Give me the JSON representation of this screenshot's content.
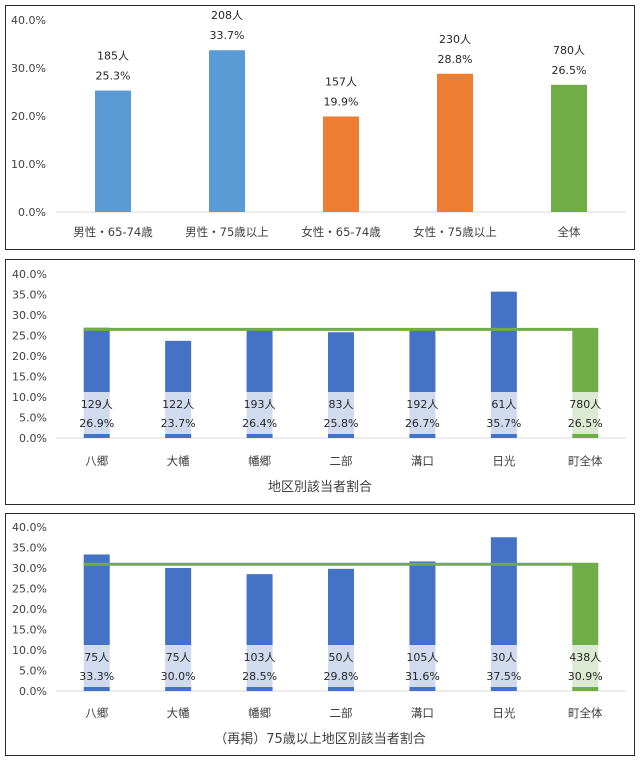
{
  "chart_data": [
    {
      "type": "bar",
      "title": "",
      "ylim": [
        0,
        40
      ],
      "yticks": [
        "0.0%",
        "10.0%",
        "20.0%",
        "30.0%",
        "40.0%"
      ],
      "gridlines": false,
      "categories": [
        "男性・65-74歳",
        "男性・75歳以上",
        "女性・65-74歳",
        "女性・75歳以上",
        "全体"
      ],
      "values": [
        25.3,
        33.7,
        19.9,
        28.8,
        26.5
      ],
      "counts": [
        "185人",
        "208人",
        "157人",
        "230人",
        "780人"
      ],
      "pct_labels": [
        "25.3%",
        "33.7%",
        "19.9%",
        "28.8%",
        "26.5%"
      ],
      "colors": [
        "#5b9bd5",
        "#5b9bd5",
        "#ed7d31",
        "#ed7d31",
        "#70ad47"
      ]
    },
    {
      "type": "bar",
      "title": "地区別該当者割合",
      "ylim": [
        0,
        40
      ],
      "yticks": [
        "0.0%",
        "5.0%",
        "10.0%",
        "15.0%",
        "20.0%",
        "25.0%",
        "30.0%",
        "35.0%",
        "40.0%"
      ],
      "categories": [
        "八郷",
        "大幡",
        "幡郷",
        "二部",
        "溝口",
        "日光",
        "町全体"
      ],
      "values": [
        26.9,
        23.7,
        26.4,
        25.8,
        26.7,
        35.7,
        26.5
      ],
      "counts": [
        "129人",
        "122人",
        "193人",
        "83人",
        "192人",
        "61人",
        "780人"
      ],
      "pct_labels": [
        "26.9%",
        "23.7%",
        "26.4%",
        "25.8%",
        "26.7%",
        "35.7%",
        "26.5%"
      ],
      "colors": [
        "#4472c4",
        "#4472c4",
        "#4472c4",
        "#4472c4",
        "#4472c4",
        "#4472c4",
        "#70ad47"
      ],
      "reference_line": 26.5,
      "reference_color": "#70ad47"
    },
    {
      "type": "bar",
      "title": "（再掲）75歳以上地区別該当者割合",
      "ylim": [
        0,
        40
      ],
      "yticks": [
        "0.0%",
        "5.0%",
        "10.0%",
        "15.0%",
        "20.0%",
        "25.0%",
        "30.0%",
        "35.0%",
        "40.0%"
      ],
      "categories": [
        "八郷",
        "大幡",
        "幡郷",
        "二部",
        "溝口",
        "日光",
        "町全体"
      ],
      "values": [
        33.3,
        30.0,
        28.5,
        29.8,
        31.6,
        37.5,
        30.9
      ],
      "counts": [
        "75人",
        "75人",
        "103人",
        "50人",
        "105人",
        "30人",
        "438人"
      ],
      "pct_labels": [
        "33.3%",
        "30.0%",
        "28.5%",
        "29.8%",
        "31.6%",
        "37.5%",
        "30.9%"
      ],
      "colors": [
        "#4472c4",
        "#4472c4",
        "#4472c4",
        "#4472c4",
        "#4472c4",
        "#4472c4",
        "#70ad47"
      ],
      "reference_line": 30.9,
      "reference_color": "#70ad47"
    }
  ]
}
